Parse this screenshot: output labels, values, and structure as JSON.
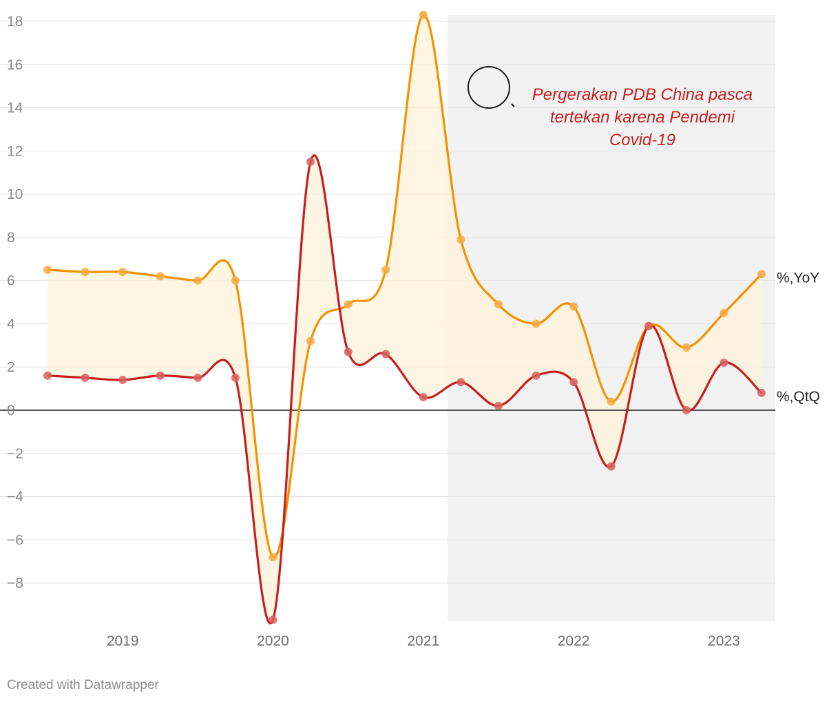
{
  "chart_data": {
    "type": "line",
    "title": "",
    "xlabel": "",
    "ylabel": "",
    "x": [
      2018.5,
      2018.75,
      2019.0,
      2019.25,
      2019.5,
      2019.75,
      2020.0,
      2020.25,
      2020.5,
      2020.75,
      2021.0,
      2021.25,
      2021.5,
      2021.75,
      2022.0,
      2022.25,
      2022.5,
      2022.75,
      2023.0,
      2023.25
    ],
    "xticks": [
      {
        "value": 2019,
        "label": "2019"
      },
      {
        "value": 2020,
        "label": "2020"
      },
      {
        "value": 2021,
        "label": "2021"
      },
      {
        "value": 2022,
        "label": "2022"
      },
      {
        "value": 2023,
        "label": "2023"
      }
    ],
    "yticks": [
      {
        "value": 18,
        "label": "18"
      },
      {
        "value": 16,
        "label": "16"
      },
      {
        "value": 14,
        "label": "14"
      },
      {
        "value": 12,
        "label": "12"
      },
      {
        "value": 10,
        "label": "10"
      },
      {
        "value": 8,
        "label": "8"
      },
      {
        "value": 6,
        "label": "6"
      },
      {
        "value": 4,
        "label": "4"
      },
      {
        "value": 2,
        "label": "2"
      },
      {
        "value": 0,
        "label": "0"
      },
      {
        "value": -2,
        "label": "−2"
      },
      {
        "value": -4,
        "label": "−4"
      },
      {
        "value": -6,
        "label": "−6"
      },
      {
        "value": -8,
        "label": "−8"
      }
    ],
    "xlim": [
      2018.47,
      2023.33
    ],
    "ylim": [
      -9.8,
      18.3
    ],
    "grid": true,
    "highlight_range": [
      2021.16,
      2023.33
    ],
    "series": [
      {
        "name": "%,YoY",
        "color": "#f39200",
        "marker_color": "#f7a941",
        "values": [
          6.5,
          6.4,
          6.4,
          6.2,
          6.0,
          6.0,
          -6.8,
          3.2,
          4.9,
          6.5,
          18.3,
          7.9,
          4.9,
          4.0,
          4.8,
          0.4,
          3.9,
          2.9,
          4.5,
          6.3
        ]
      },
      {
        "name": "%,QtQ",
        "color": "#c71e1d",
        "marker_color": "#d75f5f",
        "values": [
          1.6,
          1.5,
          1.4,
          1.6,
          1.5,
          1.5,
          -9.7,
          11.5,
          2.7,
          2.6,
          0.6,
          1.3,
          0.2,
          1.6,
          1.3,
          -2.6,
          3.9,
          0.0,
          2.2,
          0.8
        ]
      }
    ],
    "band_fill": "#fdf3da",
    "highlight_fill": "#f2f2f2",
    "annotation": {
      "lines": [
        "Pergerakan PDB China pasca",
        "tertekan karena  Pendemi",
        "Covid-19"
      ],
      "color": "#c71e1d"
    }
  },
  "footer": {
    "credit": "Created with Datawrapper"
  }
}
